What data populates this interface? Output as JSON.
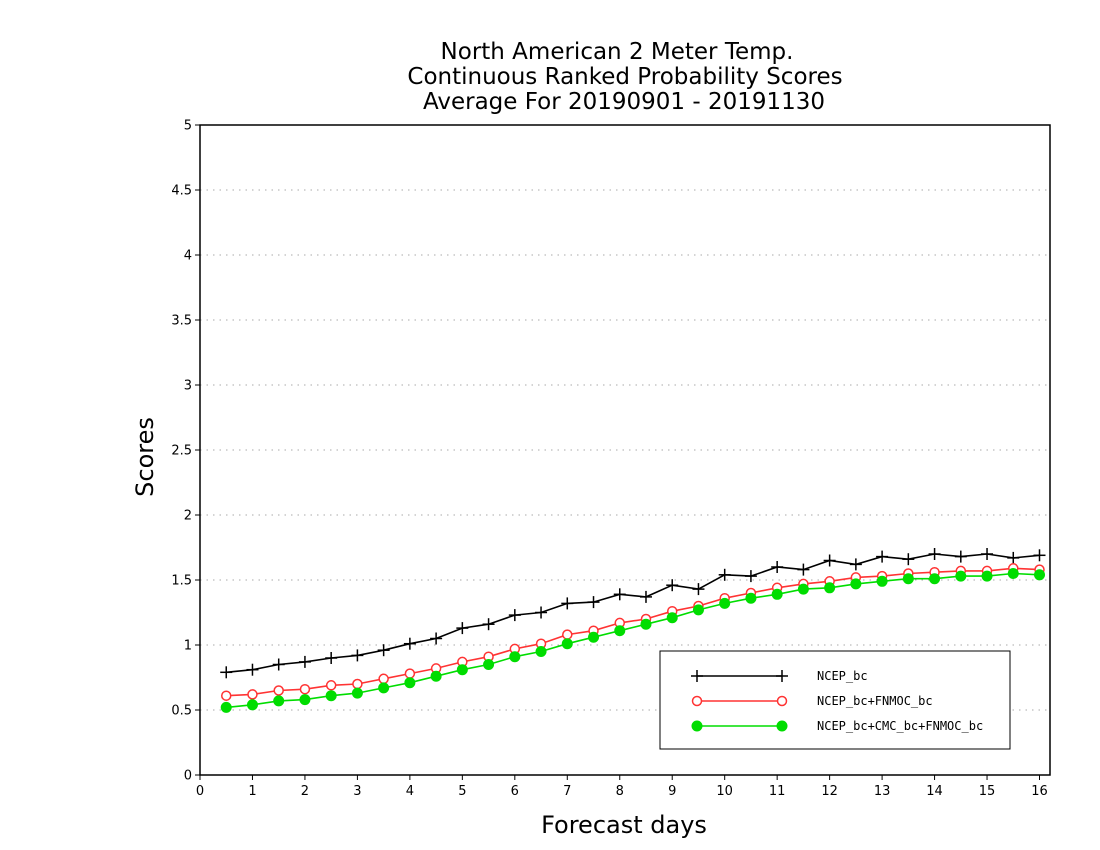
{
  "chart_data": {
    "type": "line",
    "title": [
      "North American 2 Meter Temp.",
      "Continuous Ranked Probability Scores",
      "Average For 20190901 - 20191130"
    ],
    "xlabel": "Forecast days",
    "ylabel": "Scores",
    "xlim": [
      0,
      16.2
    ],
    "ylim": [
      0,
      5
    ],
    "x_ticks": [
      "0",
      "1",
      "2",
      "3",
      "4",
      "5",
      "6",
      "7",
      "8",
      "9",
      "10",
      "11",
      "12",
      "13",
      "14",
      "15",
      "16"
    ],
    "y_ticks": [
      "0",
      "0.5",
      "1",
      "1.5",
      "2",
      "2.5",
      "3",
      "3.5",
      "4",
      "4.5",
      "5"
    ],
    "grid": "dotted horizontal",
    "legend_position": "bottom-right",
    "x": [
      0.5,
      1,
      1.5,
      2,
      2.5,
      3,
      3.5,
      4,
      4.5,
      5,
      5.5,
      6,
      6.5,
      7,
      7.5,
      8,
      8.5,
      9,
      9.5,
      10,
      10.5,
      11,
      11.5,
      12,
      12.5,
      13,
      13.5,
      14,
      14.5,
      15,
      15.5,
      16
    ],
    "series": [
      {
        "name": "NCEP_bc",
        "color": "#000000",
        "marker": "plus",
        "values": [
          0.79,
          0.81,
          0.85,
          0.87,
          0.9,
          0.92,
          0.96,
          1.01,
          1.05,
          1.13,
          1.16,
          1.23,
          1.25,
          1.32,
          1.33,
          1.39,
          1.37,
          1.46,
          1.43,
          1.54,
          1.53,
          1.6,
          1.58,
          1.65,
          1.62,
          1.68,
          1.66,
          1.7,
          1.68,
          1.7,
          1.67,
          1.69
        ]
      },
      {
        "name": "NCEP_bc+FNMOC_bc",
        "color": "#ff3333",
        "marker": "open-circle",
        "values": [
          0.61,
          0.62,
          0.65,
          0.66,
          0.69,
          0.7,
          0.74,
          0.78,
          0.82,
          0.87,
          0.91,
          0.97,
          1.01,
          1.08,
          1.11,
          1.17,
          1.2,
          1.26,
          1.3,
          1.36,
          1.4,
          1.44,
          1.47,
          1.49,
          1.52,
          1.53,
          1.55,
          1.56,
          1.57,
          1.57,
          1.59,
          1.58
        ]
      },
      {
        "name": "NCEP_bc+CMC_bc+FNMOC_bc",
        "color": "#00dd00",
        "marker": "filled-circle",
        "values": [
          0.52,
          0.54,
          0.57,
          0.58,
          0.61,
          0.63,
          0.67,
          0.71,
          0.76,
          0.81,
          0.85,
          0.91,
          0.95,
          1.01,
          1.06,
          1.11,
          1.16,
          1.21,
          1.27,
          1.32,
          1.36,
          1.39,
          1.43,
          1.44,
          1.47,
          1.49,
          1.51,
          1.51,
          1.53,
          1.53,
          1.55,
          1.54
        ]
      }
    ]
  }
}
